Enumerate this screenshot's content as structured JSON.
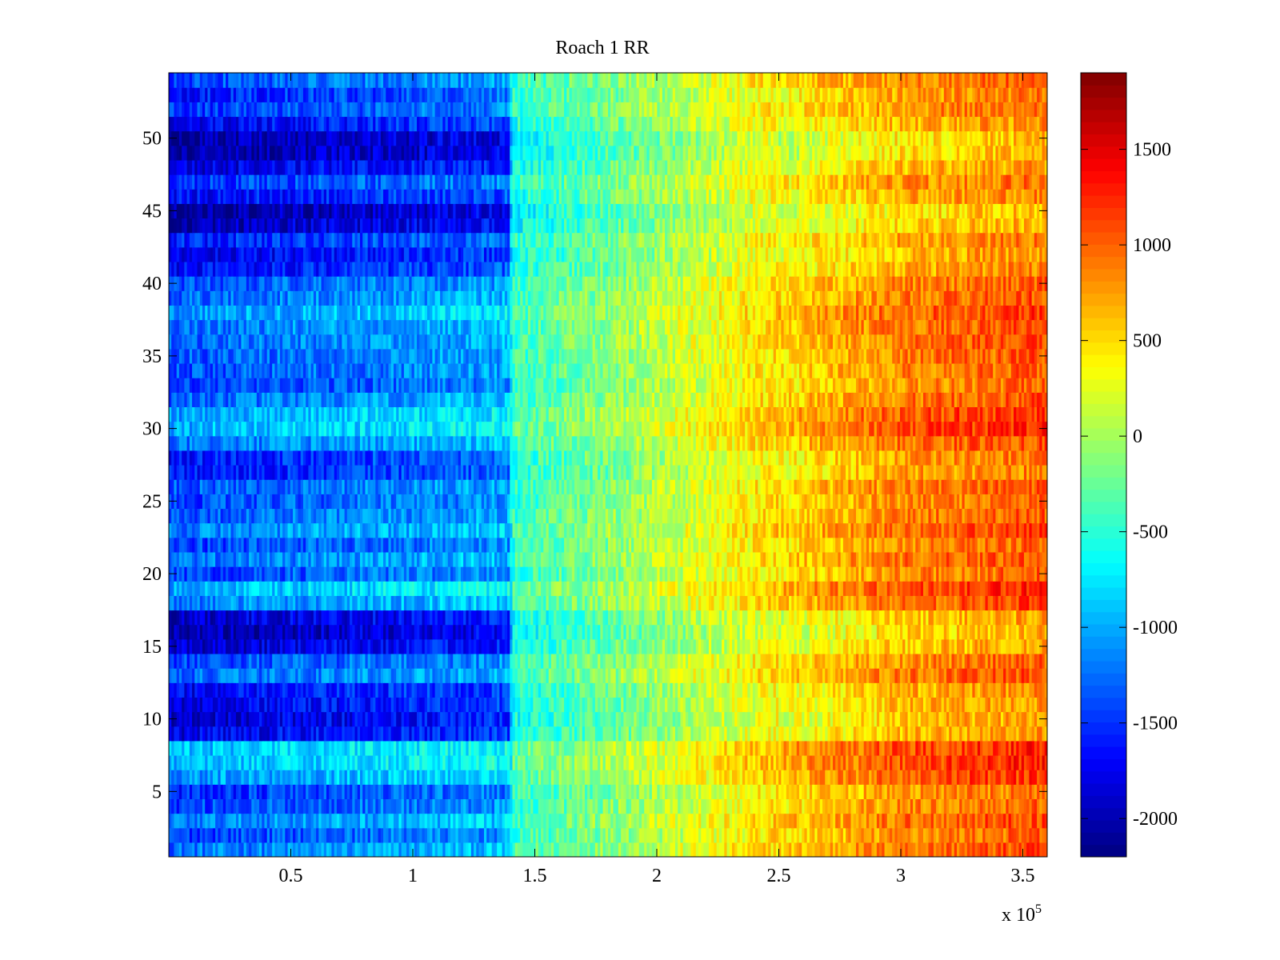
{
  "chart_data": {
    "type": "heatmap",
    "title": "Roach 1 RR",
    "xlabel": "",
    "ylabel": "",
    "x_exponent_label": "x 10",
    "x_exponent_power": "5",
    "xlim": [
      0,
      360000
    ],
    "ylim": [
      0.5,
      54.5
    ],
    "rows": 54,
    "x_ticks": [
      {
        "value": 50000,
        "label": "0.5"
      },
      {
        "value": 100000,
        "label": "1"
      },
      {
        "value": 150000,
        "label": "1.5"
      },
      {
        "value": 200000,
        "label": "2"
      },
      {
        "value": 250000,
        "label": "2.5"
      },
      {
        "value": 300000,
        "label": "3"
      },
      {
        "value": 350000,
        "label": "3.5"
      }
    ],
    "y_ticks": [
      {
        "value": 5,
        "label": "5"
      },
      {
        "value": 10,
        "label": "10"
      },
      {
        "value": 15,
        "label": "15"
      },
      {
        "value": 20,
        "label": "20"
      },
      {
        "value": 25,
        "label": "25"
      },
      {
        "value": 30,
        "label": "30"
      },
      {
        "value": 35,
        "label": "35"
      },
      {
        "value": 40,
        "label": "40"
      },
      {
        "value": 45,
        "label": "45"
      },
      {
        "value": 50,
        "label": "50"
      }
    ],
    "colorbar": {
      "colormap": "jet",
      "clim": [
        -2200,
        1900
      ],
      "ticks": [
        {
          "value": -2000,
          "label": "-2000"
        },
        {
          "value": -1500,
          "label": "-1500"
        },
        {
          "value": -1000,
          "label": "-1000"
        },
        {
          "value": -500,
          "label": "-500"
        },
        {
          "value": 0,
          "label": "0"
        },
        {
          "value": 500,
          "label": "500"
        },
        {
          "value": 1000,
          "label": "1000"
        },
        {
          "value": 1500,
          "label": "1500"
        }
      ]
    },
    "value_profile_by_x": [
      {
        "x": 0,
        "value": -1100
      },
      {
        "x": 140000,
        "value": -750
      },
      {
        "x": 141000,
        "value": -350
      },
      {
        "x": 200000,
        "value": 150
      },
      {
        "x": 260000,
        "value": 700
      },
      {
        "x": 300000,
        "value": 1000
      },
      {
        "x": 360000,
        "value": 1200
      }
    ],
    "row_offsets": [
      {
        "row": 1,
        "offset": -150
      },
      {
        "row": 2,
        "offset": -350
      },
      {
        "row": 3,
        "offset": -100
      },
      {
        "row": 4,
        "offset": -350
      },
      {
        "row": 5,
        "offset": -450
      },
      {
        "row": 6,
        "offset": 0
      },
      {
        "row": 7,
        "offset": 150
      },
      {
        "row": 8,
        "offset": 150
      },
      {
        "row": 9,
        "offset": -700
      },
      {
        "row": 10,
        "offset": -800
      },
      {
        "row": 11,
        "offset": -700
      },
      {
        "row": 12,
        "offset": -650
      },
      {
        "row": 13,
        "offset": -200
      },
      {
        "row": 14,
        "offset": -350
      },
      {
        "row": 15,
        "offset": -800
      },
      {
        "row": 16,
        "offset": -950
      },
      {
        "row": 17,
        "offset": -800
      },
      {
        "row": 18,
        "offset": -100
      },
      {
        "row": 19,
        "offset": 100
      },
      {
        "row": 20,
        "offset": -350
      },
      {
        "row": 21,
        "offset": -150
      },
      {
        "row": 22,
        "offset": -350
      },
      {
        "row": 23,
        "offset": -100
      },
      {
        "row": 24,
        "offset": -250
      },
      {
        "row": 25,
        "offset": -350
      },
      {
        "row": 26,
        "offset": -250
      },
      {
        "row": 27,
        "offset": -550
      },
      {
        "row": 28,
        "offset": -500
      },
      {
        "row": 29,
        "offset": -150
      },
      {
        "row": 30,
        "offset": 100
      },
      {
        "row": 31,
        "offset": 50
      },
      {
        "row": 32,
        "offset": -200
      },
      {
        "row": 33,
        "offset": -400
      },
      {
        "row": 34,
        "offset": -300
      },
      {
        "row": 35,
        "offset": -250
      },
      {
        "row": 36,
        "offset": -200
      },
      {
        "row": 37,
        "offset": -150
      },
      {
        "row": 38,
        "offset": 0
      },
      {
        "row": 39,
        "offset": -200
      },
      {
        "row": 40,
        "offset": -300
      },
      {
        "row": 41,
        "offset": -600
      },
      {
        "row": 42,
        "offset": -700
      },
      {
        "row": 43,
        "offset": -500
      },
      {
        "row": 44,
        "offset": -900
      },
      {
        "row": 45,
        "offset": -1000
      },
      {
        "row": 46,
        "offset": -600
      },
      {
        "row": 47,
        "offset": -400
      },
      {
        "row": 48,
        "offset": -750
      },
      {
        "row": 49,
        "offset": -1000
      },
      {
        "row": 50,
        "offset": -1000
      },
      {
        "row": 51,
        "offset": -650
      },
      {
        "row": 52,
        "offset": -400
      },
      {
        "row": 53,
        "offset": -500
      },
      {
        "row": 54,
        "offset": -300
      }
    ],
    "noise_amplitude": 280,
    "grid": false
  }
}
